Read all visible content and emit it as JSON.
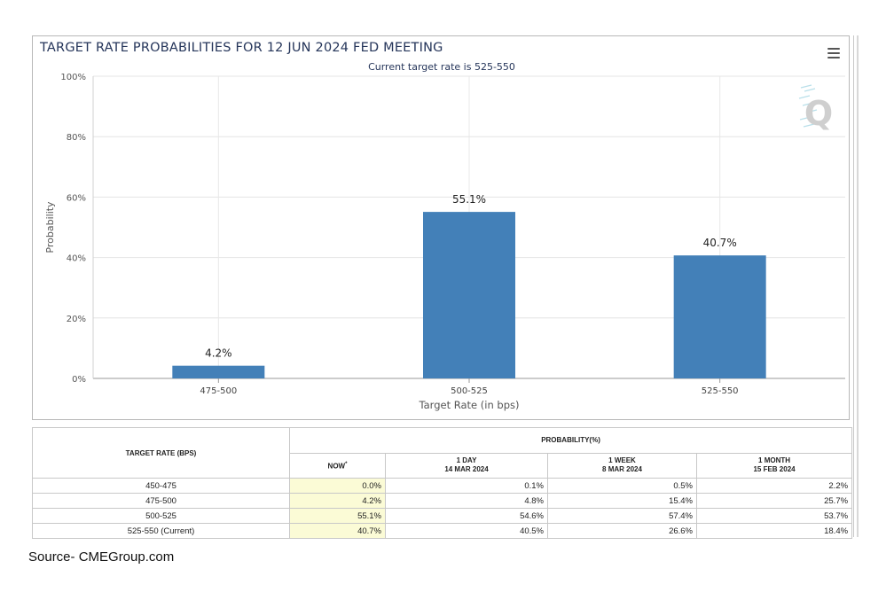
{
  "chart_data": {
    "type": "bar",
    "title": "TARGET RATE PROBABILITIES FOR 12 JUN 2024 FED MEETING",
    "subtitle": "Current target rate is 525-550",
    "xlabel": "Target Rate (in bps)",
    "ylabel": "Probability",
    "categories": [
      "475-500",
      "500-525",
      "525-550"
    ],
    "values": [
      4.2,
      55.1,
      40.7
    ],
    "data_labels": [
      "4.2%",
      "55.1%",
      "40.7%"
    ],
    "ylim": [
      0,
      100
    ],
    "yticks": [
      0,
      20,
      40,
      60,
      80,
      100
    ],
    "ytick_labels": [
      "0%",
      "20%",
      "40%",
      "60%",
      "80%",
      "100%"
    ],
    "bar_color": "#4380b8",
    "grid": true,
    "legend": "none"
  },
  "table": {
    "header_target": "TARGET RATE (BPS)",
    "header_prob": "PROBABILITY(%)",
    "columns": [
      {
        "line1": "NOW",
        "line2": "",
        "mark": "*"
      },
      {
        "line1": "1 DAY",
        "line2": "14 MAR 2024",
        "mark": ""
      },
      {
        "line1": "1 WEEK",
        "line2": "8 MAR 2024",
        "mark": ""
      },
      {
        "line1": "1 MONTH",
        "line2": "15 FEB 2024",
        "mark": ""
      }
    ],
    "rows": [
      {
        "rate": "450-475",
        "values": [
          "0.0%",
          "0.1%",
          "0.5%",
          "2.2%"
        ]
      },
      {
        "rate": "475-500",
        "values": [
          "4.2%",
          "4.8%",
          "15.4%",
          "25.7%"
        ]
      },
      {
        "rate": "500-525",
        "values": [
          "55.1%",
          "54.6%",
          "57.4%",
          "53.7%"
        ]
      },
      {
        "rate": "525-550 (Current)",
        "values": [
          "40.7%",
          "40.5%",
          "26.6%",
          "18.4%"
        ]
      }
    ]
  },
  "source": "Source- CMEGroup.com",
  "watermark": "Q",
  "icons": {
    "menu": "hamburger-menu-icon",
    "logo": "quikstrike-logo-icon"
  }
}
